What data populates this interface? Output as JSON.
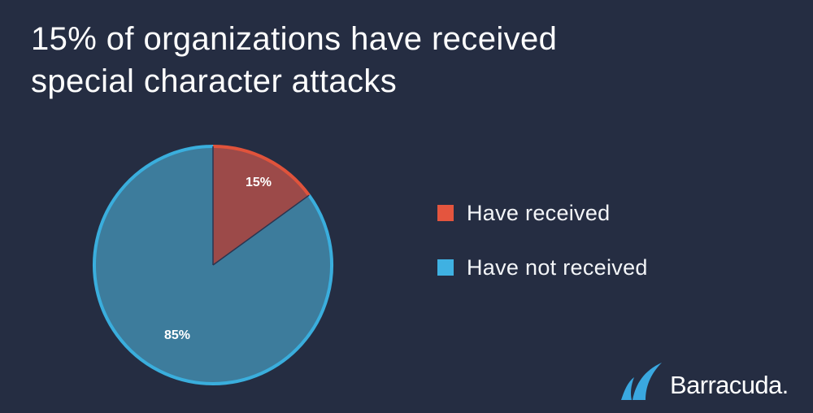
{
  "title_line1": "15% of organizations have received",
  "title_line2": "special character attacks",
  "chart_data": {
    "type": "pie",
    "title": "15% of organizations have received special character attacks",
    "slices": [
      {
        "name": "Have received",
        "value": 15,
        "label": "15%",
        "color": "#9c4a49",
        "edge_color": "#e0533b",
        "legend_color": "#e4553e"
      },
      {
        "name": "Have not received",
        "value": 85,
        "label": "85%",
        "color": "#3d7c9c",
        "edge_color": "#3aaedd",
        "legend_color": "#3fb1e2"
      }
    ],
    "legend_position": "right"
  },
  "legend": {
    "item1": "Have received",
    "item2": "Have not received"
  },
  "logo": {
    "brand": "Barracuda."
  },
  "colors": {
    "background": "#252d42",
    "text": "#ffffff",
    "logo_blue": "#3aa8e0"
  }
}
